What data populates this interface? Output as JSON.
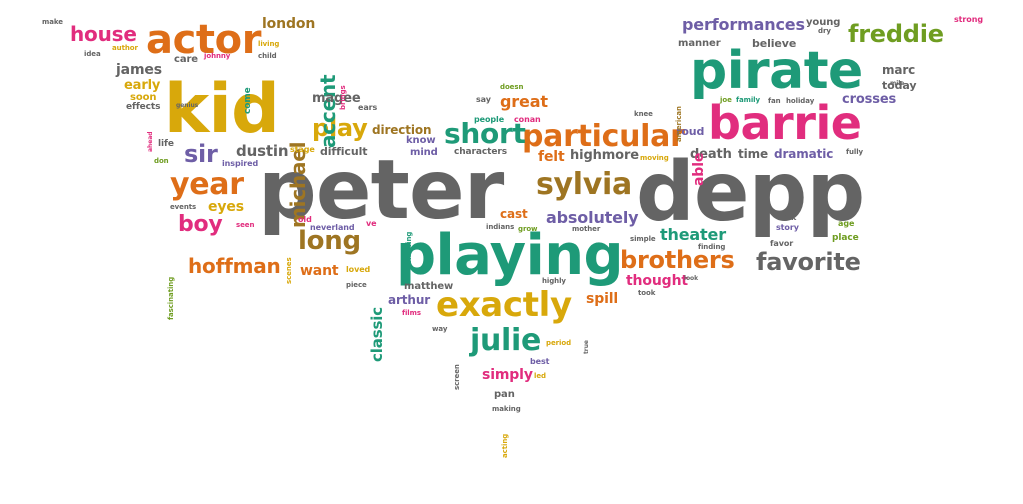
{
  "colors": {
    "gray": "#646464",
    "teal": "#1e9a78",
    "pink": "#e12d7e",
    "orange": "#de6e18",
    "gold": "#d8a80b",
    "purple": "#6e5ea6",
    "brown": "#9e7522",
    "green": "#6f9d21"
  },
  "words": [
    {
      "text": "peter",
      "color": "gray"
    },
    {
      "text": "depp",
      "color": "gray"
    },
    {
      "text": "playing",
      "color": "teal"
    },
    {
      "text": "pirate",
      "color": "teal"
    },
    {
      "text": "barrie",
      "color": "pink"
    },
    {
      "text": "kid",
      "color": "gold"
    },
    {
      "text": "actor",
      "color": "orange"
    },
    {
      "text": "exactly",
      "color": "gold"
    },
    {
      "text": "sylvia",
      "color": "brown"
    },
    {
      "text": "particular",
      "color": "orange"
    },
    {
      "text": "short",
      "color": "teal"
    },
    {
      "text": "brothers",
      "color": "orange"
    },
    {
      "text": "favorite",
      "color": "gray"
    },
    {
      "text": "freddie",
      "color": "green"
    },
    {
      "text": "year",
      "color": "orange"
    },
    {
      "text": "long",
      "color": "brown"
    },
    {
      "text": "house",
      "color": "pink"
    },
    {
      "text": "play",
      "color": "gold"
    },
    {
      "text": "julie",
      "color": "teal"
    },
    {
      "text": "hoffman",
      "color": "orange"
    },
    {
      "text": "sir",
      "color": "purple"
    },
    {
      "text": "boy",
      "color": "pink"
    },
    {
      "text": "michael",
      "color": "brown"
    },
    {
      "text": "accent",
      "color": "teal"
    },
    {
      "text": "absolutely",
      "color": "purple"
    },
    {
      "text": "performances",
      "color": "purple"
    },
    {
      "text": "dustin",
      "color": "gray"
    },
    {
      "text": "james",
      "color": "gray"
    },
    {
      "text": "london",
      "color": "brown"
    },
    {
      "text": "magee",
      "color": "gray"
    },
    {
      "text": "direction",
      "color": "brown"
    },
    {
      "text": "great",
      "color": "orange"
    },
    {
      "text": "theater",
      "color": "teal"
    },
    {
      "text": "thought",
      "color": "pink"
    },
    {
      "text": "simply",
      "color": "pink"
    },
    {
      "text": "eyes",
      "color": "gold"
    },
    {
      "text": "felt",
      "color": "orange"
    },
    {
      "text": "highmore",
      "color": "gray"
    },
    {
      "text": "death",
      "color": "gray"
    },
    {
      "text": "time",
      "color": "gray"
    },
    {
      "text": "dramatic",
      "color": "purple"
    },
    {
      "text": "crosses",
      "color": "purple"
    },
    {
      "text": "marc",
      "color": "gray"
    },
    {
      "text": "today",
      "color": "gray"
    },
    {
      "text": "believe",
      "color": "gray"
    },
    {
      "text": "manner",
      "color": "gray"
    },
    {
      "text": "young",
      "color": "gray"
    },
    {
      "text": "difficult",
      "color": "gray"
    },
    {
      "text": "want",
      "color": "orange"
    },
    {
      "text": "classic",
      "color": "teal"
    },
    {
      "text": "spill",
      "color": "orange"
    },
    {
      "text": "cast",
      "color": "orange"
    },
    {
      "text": "early",
      "color": "gold"
    },
    {
      "text": "arthur",
      "color": "purple"
    },
    {
      "text": "matthew",
      "color": "gray"
    },
    {
      "text": "able",
      "color": "pink"
    },
    {
      "text": "roud",
      "color": "purple"
    },
    {
      "text": "know",
      "color": "purple"
    },
    {
      "text": "mind",
      "color": "purple"
    },
    {
      "text": "care",
      "color": "gray"
    },
    {
      "text": "soon",
      "color": "gold"
    },
    {
      "text": "effects",
      "color": "gray"
    },
    {
      "text": "life",
      "color": "gray"
    },
    {
      "text": "ears",
      "color": "gray"
    },
    {
      "text": "say",
      "color": "gray"
    },
    {
      "text": "people",
      "color": "teal"
    },
    {
      "text": "conan",
      "color": "pink"
    },
    {
      "text": "doesn",
      "color": "green"
    },
    {
      "text": "characters",
      "color": "gray"
    },
    {
      "text": "stage",
      "color": "gold"
    },
    {
      "text": "inspired",
      "color": "purple"
    },
    {
      "text": "events",
      "color": "gray"
    },
    {
      "text": "old",
      "color": "pink"
    },
    {
      "text": "ve",
      "color": "pink"
    },
    {
      "text": "neverland",
      "color": "purple"
    },
    {
      "text": "seen",
      "color": "pink"
    },
    {
      "text": "loved",
      "color": "gold"
    },
    {
      "text": "piece",
      "color": "gray"
    },
    {
      "text": "indians",
      "color": "gray"
    },
    {
      "text": "grow",
      "color": "green"
    },
    {
      "text": "mother",
      "color": "gray"
    },
    {
      "text": "simple",
      "color": "gray"
    },
    {
      "text": "finding",
      "color": "gray"
    },
    {
      "text": "nick",
      "color": "gray"
    },
    {
      "text": "story",
      "color": "purple"
    },
    {
      "text": "age",
      "color": "green"
    },
    {
      "text": "place",
      "color": "green"
    },
    {
      "text": "favor",
      "color": "gray"
    },
    {
      "text": "highly",
      "color": "gray"
    },
    {
      "text": "films",
      "color": "pink"
    },
    {
      "text": "took",
      "color": "gray"
    },
    {
      "text": "look",
      "color": "gray"
    },
    {
      "text": "way",
      "color": "gray"
    },
    {
      "text": "period",
      "color": "gold"
    },
    {
      "text": "best",
      "color": "purple"
    },
    {
      "text": "led",
      "color": "gold"
    },
    {
      "text": "pan",
      "color": "gray"
    },
    {
      "text": "making",
      "color": "gray"
    },
    {
      "text": "acting",
      "color": "gold"
    },
    {
      "text": "true",
      "color": "gray"
    },
    {
      "text": "screen",
      "color": "gray"
    },
    {
      "text": "make",
      "color": "gray"
    },
    {
      "text": "author",
      "color": "gold"
    },
    {
      "text": "johnny",
      "color": "pink"
    },
    {
      "text": "idea",
      "color": "gray"
    },
    {
      "text": "living",
      "color": "gold"
    },
    {
      "text": "come",
      "color": "teal"
    },
    {
      "text": "child",
      "color": "gray"
    },
    {
      "text": "brings",
      "color": "pink"
    },
    {
      "text": "genius",
      "color": "gray"
    },
    {
      "text": "don",
      "color": "green"
    },
    {
      "text": "ahead",
      "color": "pink"
    },
    {
      "text": "fascinating",
      "color": "green"
    },
    {
      "text": "scenes",
      "color": "gold"
    },
    {
      "text": "showing",
      "color": "teal"
    },
    {
      "text": "moving",
      "color": "gold"
    },
    {
      "text": "knee",
      "color": "gray"
    },
    {
      "text": "american",
      "color": "brown"
    },
    {
      "text": "joe",
      "color": "green"
    },
    {
      "text": "family",
      "color": "teal"
    },
    {
      "text": "fan",
      "color": "gray"
    },
    {
      "text": "holiday",
      "color": "gray"
    },
    {
      "text": "fully",
      "color": "gray"
    },
    {
      "text": "dry",
      "color": "gray"
    },
    {
      "text": "mile",
      "color": "gray"
    },
    {
      "text": "strong",
      "color": "pink"
    }
  ]
}
